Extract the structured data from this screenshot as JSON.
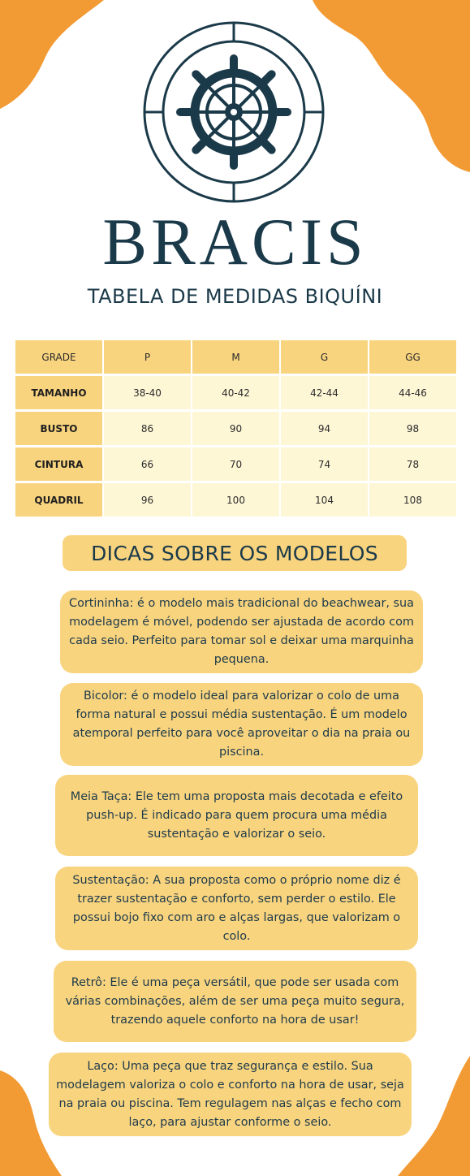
{
  "brand": {
    "name": "BRACIS",
    "subtitle": "TABELA DE MEDIDAS BIQUÍNI",
    "logo_icon": "ship-wheel-icon",
    "colors": {
      "navy": "#1b3a49",
      "orange": "#f29a33",
      "yellow": "#f9d47f",
      "cream": "#fdf7d6"
    }
  },
  "size_table": {
    "corner_label": "GRADE",
    "columns": [
      "P",
      "M",
      "G",
      "GG"
    ],
    "rows": [
      {
        "label": "TAMANHO",
        "values": [
          "38-40",
          "40-42",
          "42-44",
          "44-46"
        ]
      },
      {
        "label": "BUSTO",
        "values": [
          "86",
          "90",
          "94",
          "98"
        ]
      },
      {
        "label": "CINTURA",
        "values": [
          "66",
          "70",
          "74",
          "78"
        ]
      },
      {
        "label": "QUADRIL",
        "values": [
          "96",
          "100",
          "104",
          "108"
        ]
      }
    ]
  },
  "tips": {
    "title": "DICAS SOBRE OS MODELOS",
    "items": [
      "Cortininha: é o modelo mais tradicional do beachwear, sua modelagem é móvel, podendo ser ajustada de acordo com cada seio. Perfeito para tomar sol e deixar uma marquinha pequena.",
      "Bicolor: é o modelo ideal para valorizar o colo de uma forma natural e possui média sustentação. É um modelo atemporal perfeito para você aproveitar o dia na praia ou piscina.",
      "Meia Taça: Ele tem uma proposta mais decotada e efeito push-up. É indicado para quem procura uma média sustentação e valorizar o seio.",
      "Sustentação: A sua proposta como o próprio nome diz é trazer sustentação e conforto, sem perder o estilo. Ele possui bojo fixo com aro e alças largas, que valorizam o colo.",
      "Retrô: Ele é uma peça versátil, que pode ser usada com várias combinações, além de ser uma peça muito segura, trazendo aquele conforto na hora de usar!",
      "Laço: Uma peça que traz segurança e estilo. Sua modelagem valoriza o colo e conforto na hora de usar, seja na praia ou piscina. Tem regulagem nas alças e fecho com laço, para ajustar conforme o seio."
    ]
  }
}
